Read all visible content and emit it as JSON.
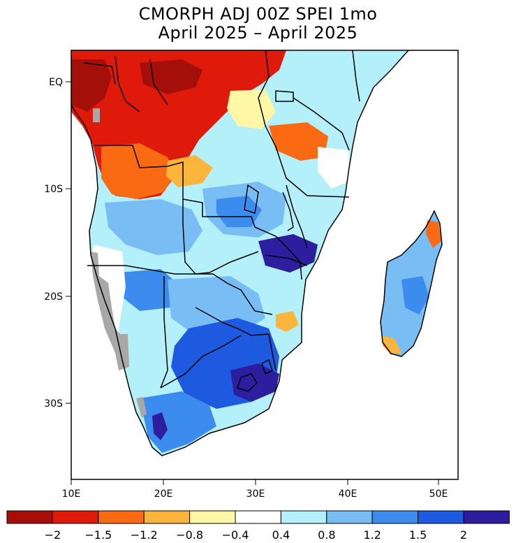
{
  "title": {
    "line1": "CMORPH ADJ 00Z SPEI 1mo",
    "line2": "April 2025 – April 2025"
  },
  "axes": {
    "x_ticks": [
      "10E",
      "20E",
      "30E",
      "40E",
      "50E"
    ],
    "y_ticks": [
      "EQ",
      "10S",
      "20S",
      "30S"
    ]
  },
  "colorbar": {
    "colors": [
      "#a50f0a",
      "#e01a0b",
      "#fa6a12",
      "#fbb43c",
      "#fef7a6",
      "#ffffff",
      "#b4f0fa",
      "#78bef5",
      "#3c8cf0",
      "#1e5ae0",
      "#2d1ea0"
    ],
    "labels": [
      "−2",
      "−1.5",
      "−1.2",
      "−0.8",
      "−0.4",
      "0.4",
      "0.8",
      "1.2",
      "1.5",
      "2"
    ]
  },
  "colors": {
    "no_data": "#a8a8a8",
    "ocean": "#ffffff",
    "border": "#000000"
  }
}
